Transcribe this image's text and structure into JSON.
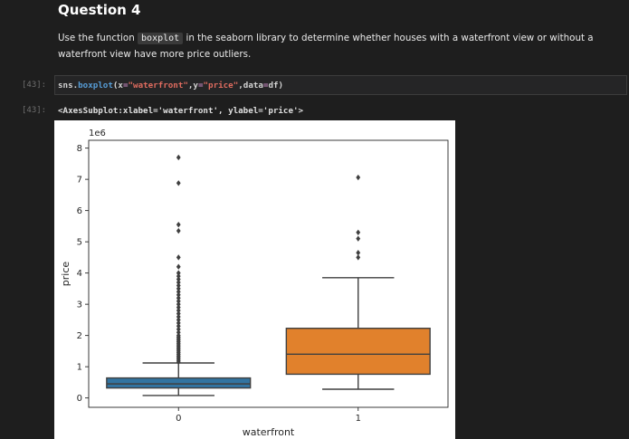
{
  "markdown": {
    "heading": "Question 4",
    "text_before": "Use the function ",
    "code_word": "boxplot",
    "text_after": " in the seaborn library to determine whether houses with a waterfront view or without a waterfront view have more price outliers."
  },
  "cell": {
    "in_prompt": "[43]:",
    "out_prompt": "[43]:",
    "code_tokens": [
      {
        "text": "sns.",
        "kind": "plain"
      },
      {
        "text": "boxplot",
        "kind": "fn"
      },
      {
        "text": "(x",
        "kind": "plain"
      },
      {
        "text": "=",
        "kind": "op"
      },
      {
        "text": "\"waterfront\"",
        "kind": "str"
      },
      {
        "text": ",y",
        "kind": "plain"
      },
      {
        "text": "=",
        "kind": "op"
      },
      {
        "text": "\"price\"",
        "kind": "str"
      },
      {
        "text": ",data",
        "kind": "plain"
      },
      {
        "text": "=",
        "kind": "op"
      },
      {
        "text": "df)",
        "kind": "plain"
      }
    ],
    "output_text": "<AxesSubplot:xlabel='waterfront', ylabel='price'>"
  },
  "colors": {
    "box_0": "#3274a1",
    "box_1": "#e1812c",
    "line": "#3f3f3f"
  },
  "chart_data": {
    "type": "box",
    "xlabel": "waterfront",
    "ylabel": "price",
    "y_offset_label": "1e6",
    "ylim": [
      -0.3,
      8.25
    ],
    "yticks": [
      0,
      1,
      2,
      3,
      4,
      5,
      6,
      7,
      8
    ],
    "ytick_labels": [
      "0",
      "1",
      "2",
      "3",
      "4",
      "5",
      "6",
      "7",
      "8"
    ],
    "categories": [
      "0",
      "1"
    ],
    "boxes": [
      {
        "category": "0",
        "whislo": 0.08,
        "q1": 0.32,
        "med": 0.45,
        "q3": 0.64,
        "whishi": 1.12,
        "fliers": [
          1.15,
          1.2,
          1.25,
          1.3,
          1.35,
          1.4,
          1.45,
          1.5,
          1.55,
          1.6,
          1.65,
          1.7,
          1.75,
          1.8,
          1.85,
          1.9,
          1.95,
          2.0,
          2.1,
          2.2,
          2.3,
          2.4,
          2.5,
          2.6,
          2.7,
          2.8,
          2.9,
          3.0,
          3.1,
          3.2,
          3.3,
          3.4,
          3.5,
          3.6,
          3.7,
          3.8,
          3.9,
          4.0,
          4.2,
          4.5,
          5.35,
          5.55,
          6.88,
          7.7
        ]
      },
      {
        "category": "1",
        "whislo": 0.28,
        "q1": 0.76,
        "med": 1.4,
        "q3": 2.23,
        "whishi": 3.85,
        "fliers": [
          4.5,
          4.65,
          5.1,
          5.3,
          7.06
        ]
      }
    ]
  }
}
